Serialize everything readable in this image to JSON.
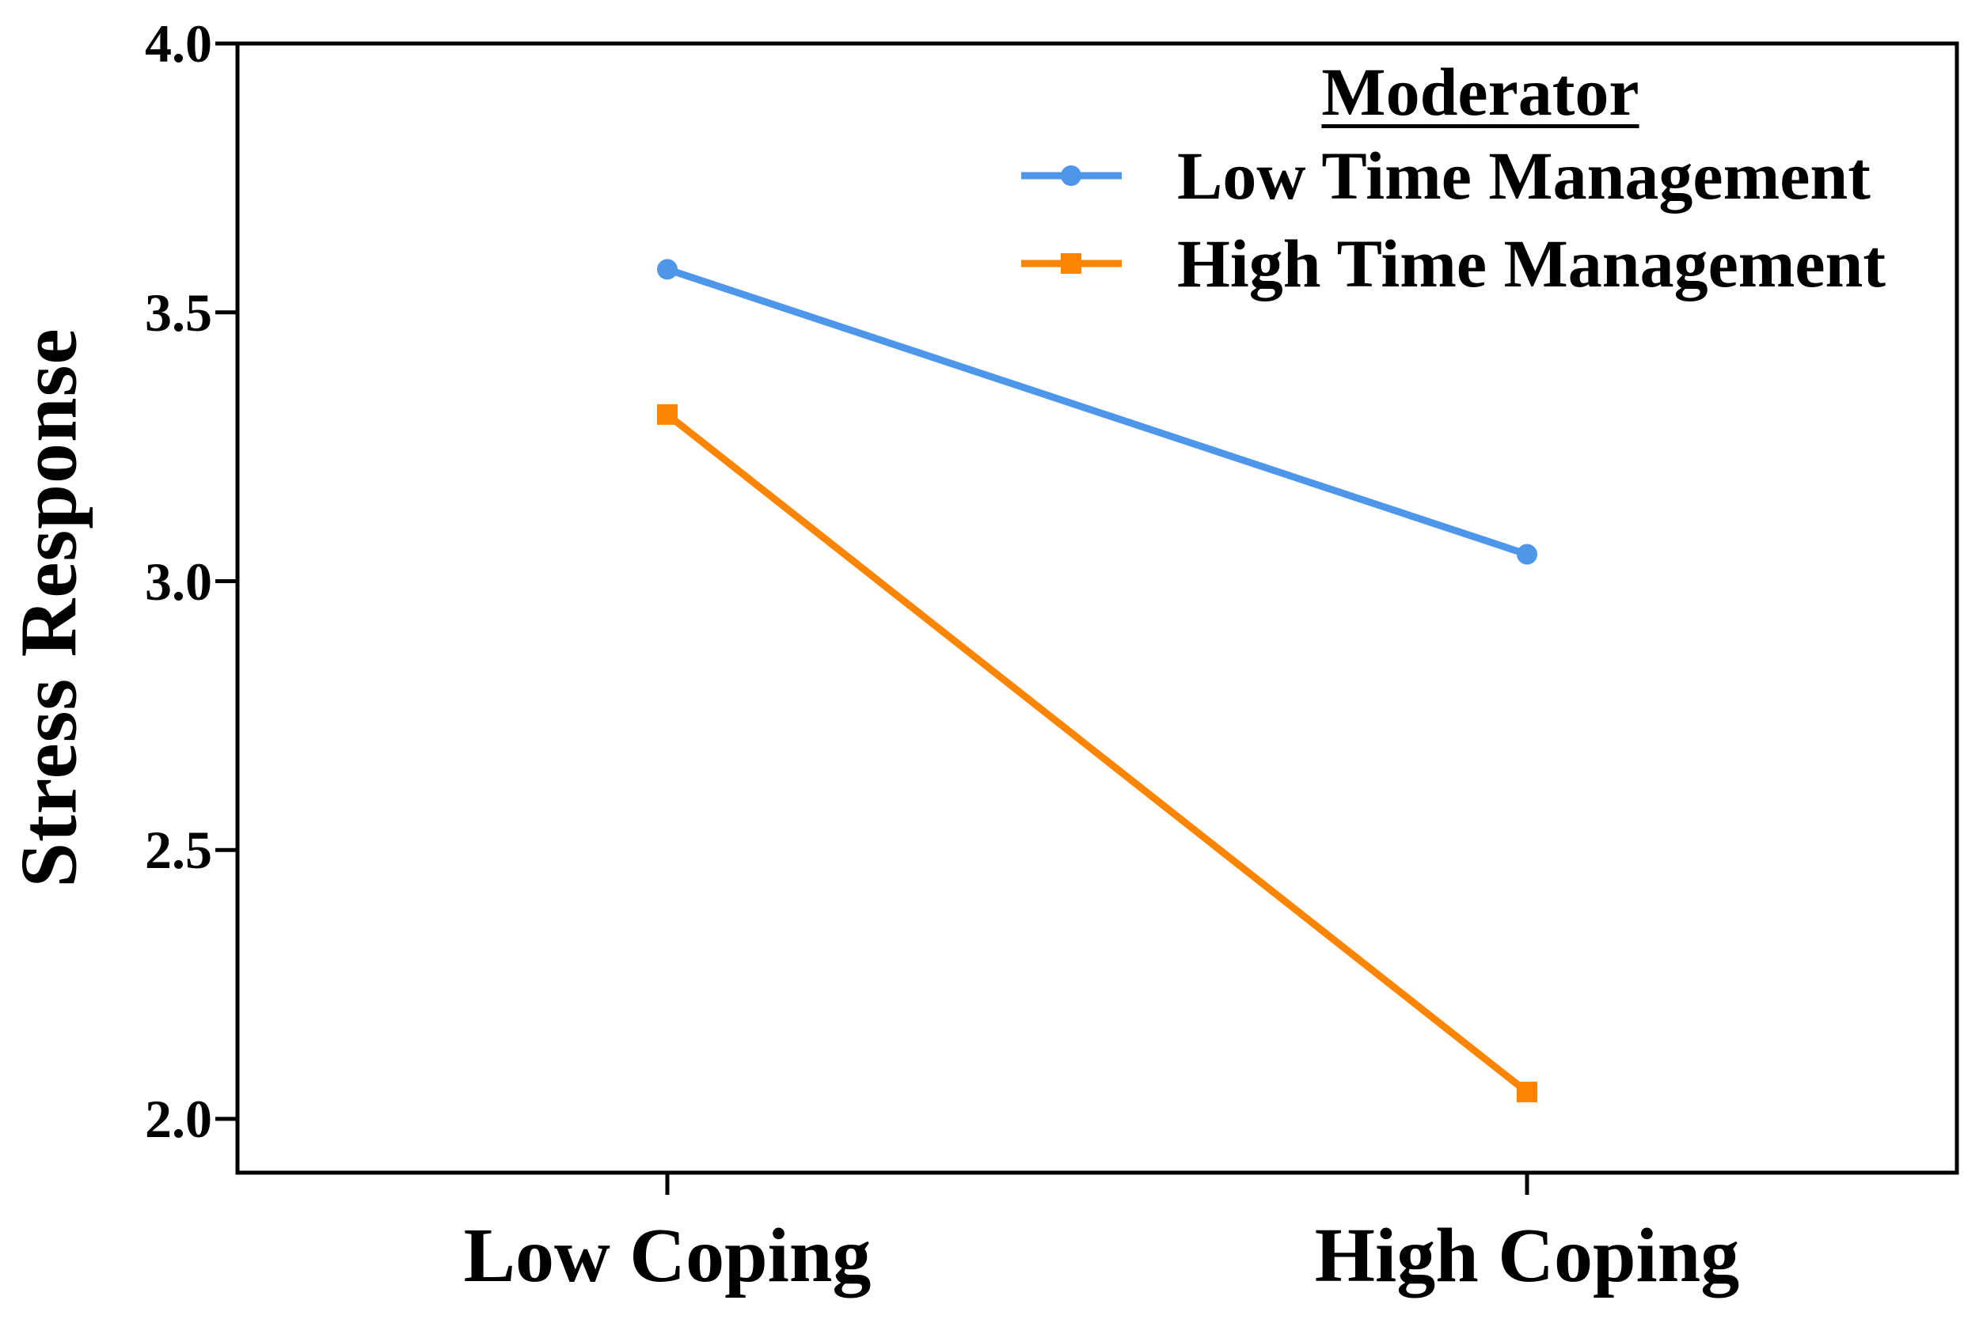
{
  "chart_data": {
    "type": "line",
    "title": "",
    "xlabel": "",
    "ylabel": "Stress Response",
    "categories": [
      "Low Coping",
      "High Coping"
    ],
    "series": [
      {
        "name": "Low Time Management",
        "color": "#4D96E9",
        "marker": "circle",
        "values": [
          3.58,
          3.05
        ]
      },
      {
        "name": "High Time Management",
        "color": "#FB8500",
        "marker": "square",
        "values": [
          3.31,
          2.05
        ]
      }
    ],
    "legend": {
      "title": "Moderator",
      "position": "upper right",
      "title_underlined": true
    },
    "y_ticks": [
      4.0,
      3.5,
      3.0,
      2.5,
      2.0
    ],
    "y_tick_labels": [
      "4.0",
      "3.5",
      "3.0",
      "2.5",
      "2.0"
    ],
    "ylim": [
      1.9,
      4.0
    ],
    "grid": false,
    "axis_color": "#000000",
    "background_color": "#ffffff"
  }
}
